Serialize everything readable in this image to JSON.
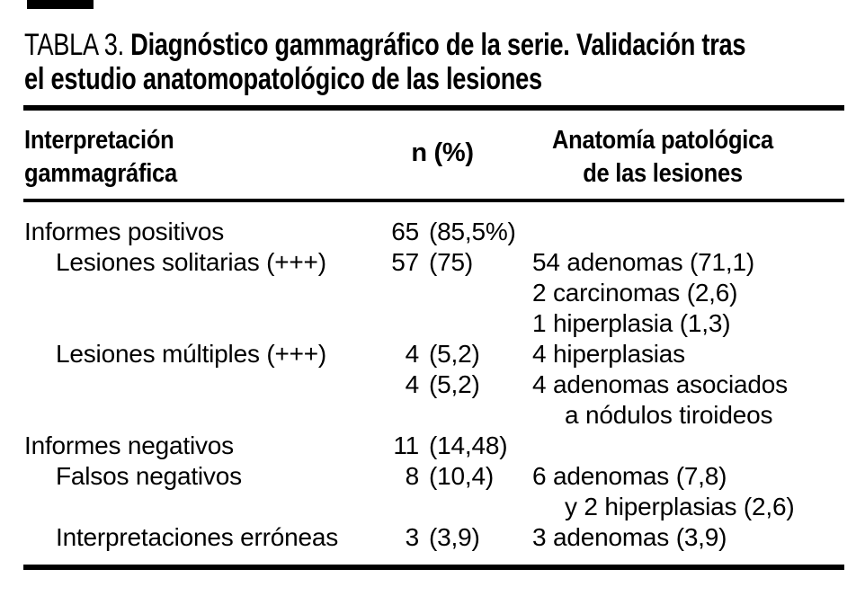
{
  "colors": {
    "ink": "#000000",
    "background": "#ffffff"
  },
  "caption": {
    "label": "TABLA 3.",
    "title_line1": "Diagnóstico gammagráfico de la serie. Validación tras",
    "title_line2": "el estudio anatomopatológico de las lesiones"
  },
  "table": {
    "headers": {
      "interpretation_line1": "Interpretación",
      "interpretation_line2": "gammagráfica",
      "n_pct": "n (%)",
      "pathology_line1": "Anatomía patológica",
      "pathology_line2": "de las lesiones"
    },
    "rows": [
      {
        "interpretation": "Informes positivos",
        "n": "65",
        "pct": "(85,5%)",
        "pathology": ""
      },
      {
        "interpretation": "Lesiones solitarias (+++)",
        "n": "57",
        "pct": "(75)",
        "pathology": "54 adenomas (71,1)"
      },
      {
        "interpretation": "",
        "n": "",
        "pct": "",
        "pathology": "2 carcinomas (2,6)"
      },
      {
        "interpretation": "",
        "n": "",
        "pct": "",
        "pathology": "1 hiperplasia (1,3)"
      },
      {
        "interpretation": "Lesiones múltiples (+++)",
        "n": "4",
        "pct": "(5,2)",
        "pathology": "4 hiperplasias"
      },
      {
        "interpretation": "",
        "n": "4",
        "pct": "(5,2)",
        "pathology": "4 adenomas asociados"
      },
      {
        "interpretation": "",
        "n": "",
        "pct": "",
        "pathology": "a nódulos tiroideos"
      },
      {
        "interpretation": "Informes negativos",
        "n": "11",
        "pct": "(14,48)",
        "pathology": ""
      },
      {
        "interpretation": "Falsos negativos",
        "n": "8",
        "pct": "(10,4)",
        "pathology": "6 adenomas (7,8)"
      },
      {
        "interpretation": "",
        "n": "",
        "pct": "",
        "pathology": "y 2 hiperplasias (2,6)"
      },
      {
        "interpretation": "Interpretaciones erróneas",
        "n": "3",
        "pct": "(3,9)",
        "pathology": "3 adenomas (3,9)"
      }
    ]
  }
}
